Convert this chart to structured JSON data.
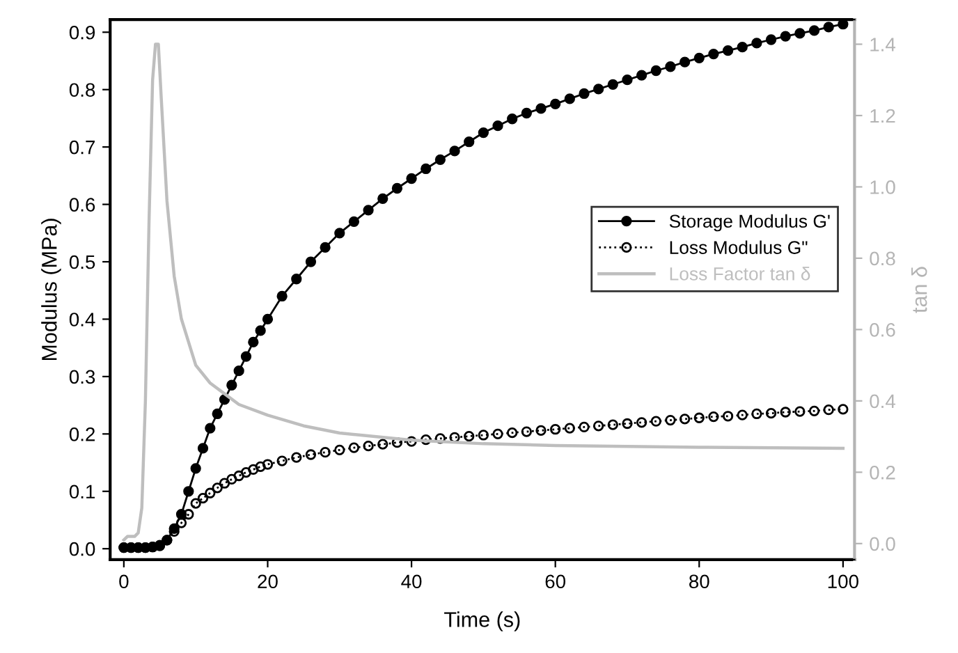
{
  "chart_data": {
    "type": "line",
    "xlabel": "Time (s)",
    "ylabel": "Modulus (MPa)",
    "y2label": "tan δ",
    "xlim": [
      -1.9,
      101.6
    ],
    "xticks": [
      0,
      20,
      40,
      60,
      80,
      100
    ],
    "ylim": [
      -0.019,
      0.922
    ],
    "yticks": [
      {
        "value": 0,
        "label": "0.0"
      },
      0.1,
      0.2,
      0.3,
      0.4,
      0.5,
      0.6,
      0.7,
      0.8,
      0.9
    ],
    "y2lim": [
      -0.045,
      1.469
    ],
    "y2ticks": [
      {
        "value": 0,
        "label": "0.0"
      },
      0.2,
      0.4,
      0.6,
      0.8,
      {
        "value": 1,
        "label": "1.0"
      },
      1.2,
      1.4
    ],
    "grid": false,
    "legend": "right",
    "series": [
      {
        "name": "Storage Modulus G'",
        "color": "#000000",
        "marker": "circle",
        "line_style": "solid",
        "x": [
          0,
          1,
          2,
          3,
          4,
          5,
          6,
          7,
          8,
          9,
          10,
          11,
          12,
          13,
          14,
          15,
          16,
          17,
          18,
          19,
          20,
          22,
          24,
          26,
          28,
          30,
          32,
          34,
          36,
          38,
          40,
          42,
          44,
          46,
          48,
          50,
          52,
          54,
          56,
          58,
          60,
          62,
          64,
          66,
          68,
          70,
          72,
          74,
          76,
          78,
          80,
          82,
          84,
          86,
          88,
          90,
          92,
          94,
          96,
          98,
          100
        ],
        "values": [
          0.002,
          0.002,
          0.002,
          0.002,
          0.003,
          0.005,
          0.015,
          0.035,
          0.06,
          0.1,
          0.14,
          0.175,
          0.21,
          0.235,
          0.26,
          0.285,
          0.31,
          0.335,
          0.36,
          0.38,
          0.4,
          0.44,
          0.47,
          0.5,
          0.525,
          0.55,
          0.57,
          0.59,
          0.61,
          0.628,
          0.645,
          0.662,
          0.678,
          0.693,
          0.709,
          0.725,
          0.737,
          0.749,
          0.759,
          0.767,
          0.775,
          0.784,
          0.793,
          0.801,
          0.809,
          0.817,
          0.825,
          0.833,
          0.84,
          0.848,
          0.855,
          0.862,
          0.868,
          0.874,
          0.881,
          0.887,
          0.893,
          0.898,
          0.903,
          0.909,
          0.914
        ]
      },
      {
        "name": "Loss Modulus G\"",
        "color": "#000000",
        "marker": "circle",
        "line_style": "dotted",
        "x": [
          0,
          1,
          2,
          3,
          4,
          5,
          6,
          7,
          8,
          9,
          10,
          11,
          12,
          13,
          14,
          15,
          16,
          17,
          18,
          19,
          20,
          22,
          24,
          26,
          28,
          30,
          32,
          34,
          36,
          38,
          40,
          42,
          44,
          46,
          48,
          50,
          52,
          54,
          56,
          58,
          60,
          62,
          64,
          66,
          68,
          70,
          72,
          74,
          76,
          78,
          80,
          82,
          84,
          86,
          88,
          90,
          92,
          94,
          96,
          98,
          100
        ],
        "values": [
          0.002,
          0.002,
          0.002,
          0.002,
          0.003,
          0.006,
          0.015,
          0.03,
          0.045,
          0.06,
          0.079,
          0.088,
          0.097,
          0.106,
          0.114,
          0.121,
          0.127,
          0.133,
          0.138,
          0.143,
          0.147,
          0.153,
          0.159,
          0.164,
          0.168,
          0.172,
          0.176,
          0.179,
          0.182,
          0.185,
          0.187,
          0.19,
          0.192,
          0.194,
          0.196,
          0.198,
          0.2,
          0.202,
          0.204,
          0.206,
          0.208,
          0.21,
          0.212,
          0.214,
          0.216,
          0.218,
          0.22,
          0.222,
          0.224,
          0.226,
          0.228,
          0.23,
          0.231,
          0.233,
          0.235,
          0.236,
          0.238,
          0.239,
          0.24,
          0.242,
          0.243
        ]
      },
      {
        "name": "Loss Factor tan δ",
        "color": "#bebebe",
        "marker": "none",
        "line_style": "solid",
        "axis": "y2",
        "x": [
          0,
          0.5,
          1.5,
          2,
          2.5,
          3,
          3.5,
          4,
          4.4,
          4.8,
          5.2,
          6,
          7,
          8,
          10,
          12,
          14,
          16,
          20,
          25,
          30,
          40,
          50,
          60,
          80,
          100
        ],
        "values": [
          0.01,
          0.02,
          0.02,
          0.03,
          0.1,
          0.4,
          0.9,
          1.3,
          1.4,
          1.4,
          1.25,
          0.96,
          0.75,
          0.63,
          0.5,
          0.45,
          0.42,
          0.39,
          0.36,
          0.33,
          0.31,
          0.29,
          0.28,
          0.275,
          0.27,
          0.267
        ]
      }
    ]
  }
}
